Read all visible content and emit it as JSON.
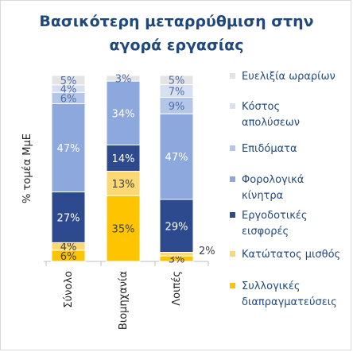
{
  "chart_data": {
    "type": "bar",
    "stacked": true,
    "normalized_to_percent": true,
    "title": "Βασικότερη μεταρρύθμιση στην αγορά εργασίας",
    "title_lines": [
      "Βασικότερη μεταρρύθμιση στην",
      "αγορά εργασίας"
    ],
    "ylabel": "% τομέα ΜμΕ",
    "xlabel": "",
    "ylim": [
      0,
      100
    ],
    "categories": [
      "Σύνολο",
      "Βιομηχανία",
      "Λοιπές"
    ],
    "legend_position": "right",
    "grid": false,
    "series": [
      {
        "name": "Συλλογικές διαπραγματεύσεις",
        "legend_lines": [
          "Συλλογικές",
          "διαπραγματεύσεις"
        ],
        "color": "#fec400",
        "values": [
          6,
          35,
          3
        ],
        "labels": [
          "6%",
          "35%",
          "3%"
        ]
      },
      {
        "name": "Κατώτατος μισθός",
        "legend_lines": [
          "Κατώτατος μισθός"
        ],
        "color": "#fbd874",
        "values": [
          4,
          13,
          2
        ],
        "labels": [
          "4%",
          "13%",
          "2%"
        ]
      },
      {
        "name": "Εργοδοτικές εισφορές",
        "legend_lines": [
          "Εργοδοτικές",
          "εισφορές"
        ],
        "color": "#2d4a8f",
        "values": [
          27,
          14,
          29
        ],
        "labels": [
          "27%",
          "14%",
          "29%"
        ]
      },
      {
        "name": "Φορολογικά κίνητρα",
        "legend_lines": [
          "Φορολογικά",
          "κίνητρα"
        ],
        "color": "#8ca8dc",
        "values": [
          47,
          34,
          47
        ],
        "labels": [
          "47%",
          "34%",
          "47%"
        ]
      },
      {
        "name": "Επιδόματα",
        "legend_lines": [
          "Επιδόματα"
        ],
        "color": "#b4c6e7",
        "values": [
          6,
          0,
          9
        ],
        "labels": [
          "6%",
          "",
          "9%"
        ]
      },
      {
        "name": "Κόστος απολύσεων",
        "legend_lines": [
          "Κόστος",
          "απολύσεων"
        ],
        "color": "#d6e0f0",
        "values": [
          4,
          0,
          7
        ],
        "labels": [
          "4%",
          "",
          "7%"
        ]
      },
      {
        "name": "Ευελιξία ωραρίων",
        "legend_lines": [
          "Ευελιξία ωραρίων"
        ],
        "color": "#e4e4e4",
        "values": [
          5,
          3,
          5
        ],
        "labels": [
          "5%",
          "3%",
          "5%"
        ]
      }
    ]
  }
}
